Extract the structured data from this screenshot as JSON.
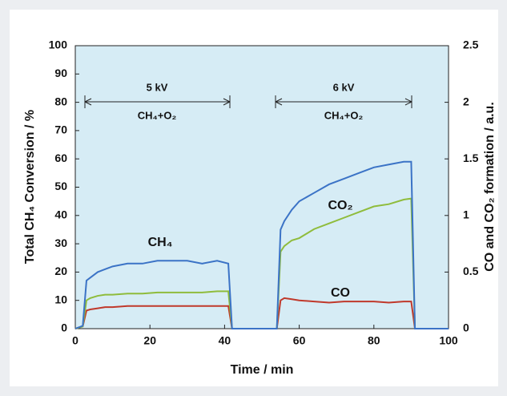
{
  "chart_data": {
    "type": "line",
    "x_label": "Time / min",
    "y_label": "Total CH₄ Conversion / %",
    "y2_label": "CO and CO₂ formation / a.u.",
    "annotations": [
      "5 kV",
      "CH₄+O₂",
      "6 kV",
      "CH₄+O₂"
    ],
    "x": [
      0,
      2,
      3,
      4,
      6,
      8,
      10,
      14,
      18,
      22,
      26,
      30,
      34,
      38,
      41,
      42,
      44,
      48,
      52,
      54,
      55,
      56,
      58,
      60,
      64,
      68,
      72,
      76,
      80,
      84,
      88,
      90,
      91,
      94,
      98,
      100
    ],
    "series": [
      {
        "name": "CH₄",
        "color": "#3b73c6",
        "values": [
          0,
          1,
          17,
          18,
          20,
          21,
          22,
          23,
          23,
          24,
          24,
          24,
          23,
          24,
          23,
          0,
          0,
          0,
          0,
          0,
          35,
          38,
          42,
          45,
          48,
          51,
          53,
          55,
          57,
          58,
          59,
          59,
          0,
          0,
          0,
          0
        ]
      },
      {
        "name": "CO₂",
        "color": "#8fbc3c",
        "axis": "y2",
        "values": [
          0,
          0.02,
          0.25,
          0.27,
          0.29,
          0.3,
          0.3,
          0.31,
          0.31,
          0.32,
          0.32,
          0.32,
          0.32,
          0.33,
          0.33,
          0,
          0,
          0,
          0,
          0,
          0.68,
          0.73,
          0.78,
          0.8,
          0.88,
          0.93,
          0.98,
          1.03,
          1.08,
          1.1,
          1.14,
          1.15,
          0,
          0,
          0,
          0
        ]
      },
      {
        "name": "CO",
        "color": "#c0392b",
        "axis": "y2",
        "values": [
          0,
          0.02,
          0.16,
          0.17,
          0.18,
          0.19,
          0.19,
          0.2,
          0.2,
          0.2,
          0.2,
          0.2,
          0.2,
          0.2,
          0.2,
          0,
          0,
          0,
          0,
          0,
          0.25,
          0.27,
          0.26,
          0.25,
          0.24,
          0.23,
          0.24,
          0.24,
          0.24,
          0.23,
          0.24,
          0.24,
          0,
          0,
          0,
          0
        ]
      }
    ],
    "xlim": [
      0,
      100
    ],
    "xticks": [
      0,
      20,
      40,
      60,
      80,
      100
    ],
    "ylim": [
      0,
      100
    ],
    "yticks": [
      0,
      10,
      20,
      30,
      40,
      50,
      60,
      70,
      80,
      90,
      100
    ],
    "y2lim": [
      0,
      2.5
    ],
    "y2ticks": [
      0,
      0.5,
      1,
      1.5,
      2,
      2.5
    ],
    "grid": false
  }
}
